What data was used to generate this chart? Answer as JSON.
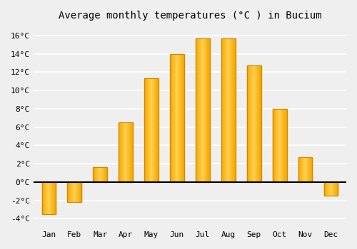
{
  "months": [
    "Jan",
    "Feb",
    "Mar",
    "Apr",
    "May",
    "Jun",
    "Jul",
    "Aug",
    "Sep",
    "Oct",
    "Nov",
    "Dec"
  ],
  "temperatures": [
    -3.5,
    -2.2,
    1.6,
    6.5,
    11.3,
    14.0,
    15.7,
    15.7,
    12.7,
    8.0,
    2.7,
    -1.5
  ],
  "bar_color_dark": "#F5A800",
  "bar_color_light": "#FFD050",
  "bar_edge_color": "#CC8800",
  "title": "Average monthly temperatures (°C ) in Bucium",
  "ylim": [
    -5,
    17
  ],
  "yticks": [
    -4,
    -2,
    0,
    2,
    4,
    6,
    8,
    10,
    12,
    14,
    16
  ],
  "ytick_labels": [
    "-4°C",
    "-2°C",
    "0°C",
    "2°C",
    "4°C",
    "6°C",
    "8°C",
    "10°C",
    "12°C",
    "14°C",
    "16°C"
  ],
  "background_color": "#efefef",
  "grid_color": "#ffffff",
  "title_fontsize": 10,
  "tick_fontsize": 8,
  "bar_width": 0.55
}
